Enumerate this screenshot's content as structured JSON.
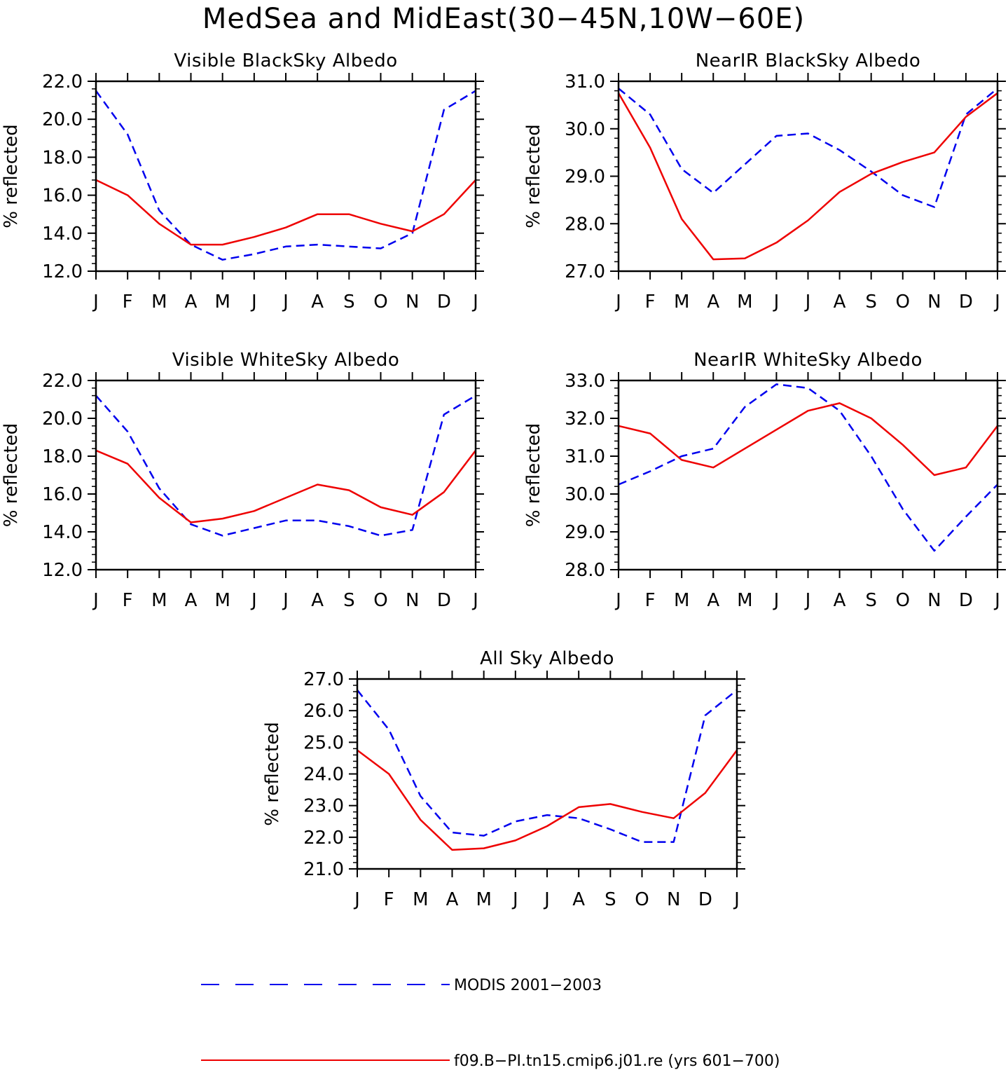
{
  "title": "MedSea and MidEast(30−45N,10W−60E)",
  "months": [
    "J",
    "F",
    "M",
    "A",
    "M",
    "J",
    "J",
    "A",
    "S",
    "O",
    "N",
    "D",
    "J"
  ],
  "legend": {
    "modis_label": "MODIS 2001−2003",
    "model_label": "f09.B−PI.tn15.cmip6.j01.re (yrs 601−700)"
  },
  "colors": {
    "modis": "#0000ee",
    "model": "#ee0000"
  },
  "chart_data": [
    {
      "type": "line",
      "title": "Visible BlackSky Albedo",
      "ylabel": "% reflected",
      "ylim": [
        12.0,
        22.0
      ],
      "yticks": [
        "12.0",
        "14.0",
        "16.0",
        "18.0",
        "20.0",
        "22.0"
      ],
      "categories": [
        "J",
        "F",
        "M",
        "A",
        "M",
        "J",
        "J",
        "A",
        "S",
        "O",
        "N",
        "D",
        "J"
      ],
      "series": [
        {
          "name": "MODIS 2001−2003",
          "style": "dashed",
          "values": [
            21.5,
            19.2,
            15.2,
            13.4,
            12.6,
            12.9,
            13.3,
            13.4,
            13.3,
            13.2,
            14.0,
            20.5,
            21.5
          ]
        },
        {
          "name": "f09.B−PI.tn15.cmip6.j01.re (yrs 601−700)",
          "style": "solid",
          "values": [
            16.8,
            16.0,
            14.5,
            13.4,
            13.4,
            13.8,
            14.3,
            15.0,
            15.0,
            14.5,
            14.1,
            15.0,
            16.8
          ]
        }
      ]
    },
    {
      "type": "line",
      "title": "NearIR BlackSky Albedo",
      "ylabel": "% reflected",
      "ylim": [
        27.0,
        31.0
      ],
      "yticks": [
        "27.0",
        "28.0",
        "29.0",
        "30.0",
        "31.0"
      ],
      "categories": [
        "J",
        "F",
        "M",
        "A",
        "M",
        "J",
        "J",
        "A",
        "S",
        "O",
        "N",
        "D",
        "J"
      ],
      "series": [
        {
          "name": "MODIS 2001−2003",
          "style": "dashed",
          "values": [
            30.85,
            30.3,
            29.15,
            28.65,
            29.25,
            29.85,
            29.9,
            29.55,
            29.1,
            28.6,
            28.35,
            30.3,
            30.85
          ]
        },
        {
          "name": "f09.B−PI.tn15.cmip6.j01.re (yrs 601−700)",
          "style": "solid",
          "values": [
            30.75,
            29.6,
            28.1,
            27.25,
            27.27,
            27.6,
            28.07,
            28.67,
            29.05,
            29.3,
            29.5,
            30.25,
            30.75
          ]
        }
      ]
    },
    {
      "type": "line",
      "title": "Visible WhiteSky Albedo",
      "ylabel": "% reflected",
      "ylim": [
        12.0,
        22.0
      ],
      "yticks": [
        "12.0",
        "14.0",
        "16.0",
        "18.0",
        "20.0",
        "22.0"
      ],
      "categories": [
        "J",
        "F",
        "M",
        "A",
        "M",
        "J",
        "J",
        "A",
        "S",
        "O",
        "N",
        "D",
        "J"
      ],
      "series": [
        {
          "name": "MODIS 2001−2003",
          "style": "dashed",
          "values": [
            21.2,
            19.3,
            16.3,
            14.4,
            13.8,
            14.2,
            14.6,
            14.6,
            14.3,
            13.8,
            14.1,
            20.2,
            21.2
          ]
        },
        {
          "name": "f09.B−PI.tn15.cmip6.j01.re (yrs 601−700)",
          "style": "solid",
          "values": [
            18.3,
            17.6,
            15.8,
            14.5,
            14.7,
            15.1,
            15.8,
            16.5,
            16.2,
            15.3,
            14.9,
            16.1,
            18.3
          ]
        }
      ]
    },
    {
      "type": "line",
      "title": "NearIR WhiteSky Albedo",
      "ylabel": "% reflected",
      "ylim": [
        28.0,
        33.0
      ],
      "yticks": [
        "28.0",
        "29.0",
        "30.0",
        "31.0",
        "32.0",
        "33.0"
      ],
      "categories": [
        "J",
        "F",
        "M",
        "A",
        "M",
        "J",
        "J",
        "A",
        "S",
        "O",
        "N",
        "D",
        "J"
      ],
      "series": [
        {
          "name": "MODIS 2001−2003",
          "style": "dashed",
          "values": [
            30.25,
            30.6,
            31.0,
            31.2,
            32.3,
            32.9,
            32.8,
            32.2,
            31.0,
            29.6,
            28.5,
            29.4,
            30.25
          ]
        },
        {
          "name": "f09.B−PI.tn15.cmip6.j01.re (yrs 601−700)",
          "style": "solid",
          "values": [
            31.8,
            31.6,
            30.9,
            30.7,
            31.2,
            31.7,
            32.2,
            32.4,
            32.0,
            31.3,
            30.5,
            30.7,
            31.8
          ]
        }
      ]
    },
    {
      "type": "line",
      "title": "All Sky Albedo",
      "ylabel": "% reflected",
      "ylim": [
        21.0,
        27.0
      ],
      "yticks": [
        "21.0",
        "22.0",
        "23.0",
        "24.0",
        "25.0",
        "26.0",
        "27.0"
      ],
      "categories": [
        "J",
        "F",
        "M",
        "A",
        "M",
        "J",
        "J",
        "A",
        "S",
        "O",
        "N",
        "D",
        "J"
      ],
      "series": [
        {
          "name": "MODIS 2001−2003",
          "style": "dashed",
          "values": [
            26.65,
            25.4,
            23.3,
            22.15,
            22.05,
            22.5,
            22.7,
            22.6,
            22.25,
            21.85,
            21.85,
            25.85,
            26.65
          ]
        },
        {
          "name": "f09.B−PI.tn15.cmip6.j01.re (yrs 601−700)",
          "style": "solid",
          "values": [
            24.75,
            24.0,
            22.55,
            21.6,
            21.65,
            21.9,
            22.35,
            22.95,
            23.05,
            22.8,
            22.6,
            23.4,
            24.75
          ]
        }
      ]
    }
  ]
}
